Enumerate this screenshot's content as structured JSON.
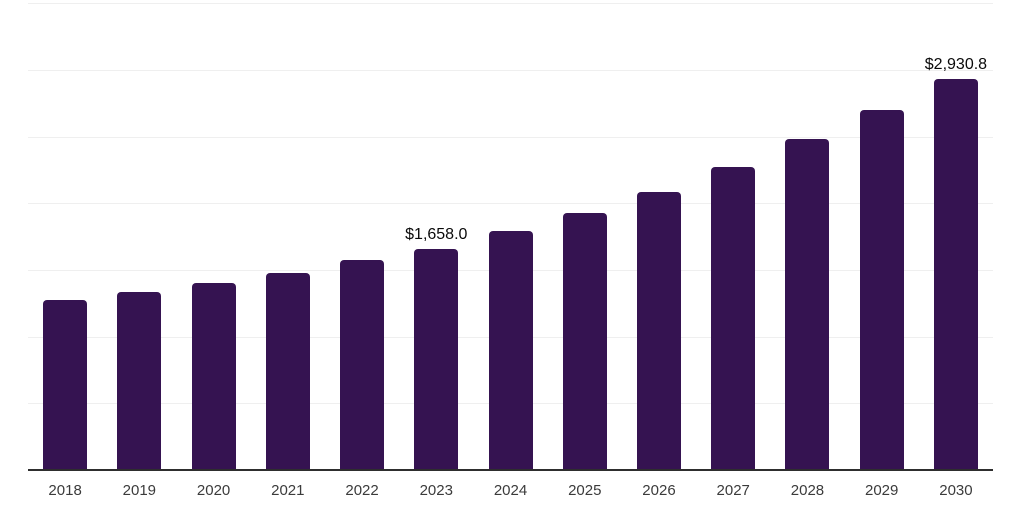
{
  "chart_data": {
    "type": "bar",
    "title": "",
    "xlabel": "",
    "ylabel": "",
    "categories": [
      "2018",
      "2019",
      "2020",
      "2021",
      "2022",
      "2023",
      "2024",
      "2025",
      "2026",
      "2027",
      "2028",
      "2029",
      "2030"
    ],
    "values": [
      1275,
      1333,
      1400,
      1480,
      1573,
      1658.0,
      1793,
      1930,
      2087,
      2275,
      2480,
      2700,
      2930.8
    ],
    "value_labels": {
      "2023": "$1,658.0",
      "2030": "$2,930.8"
    },
    "ylim": [
      0,
      3500
    ],
    "gridline_step": 500,
    "grid": true,
    "legend": false,
    "y_tick_labels_visible": false
  },
  "style": {
    "bar_color": "#351351",
    "gridline_color": "#efefef",
    "axis_line_color": "#2e2e2e",
    "tick_label_color": "#3b3b3b",
    "value_label_color": "#0a0a0a",
    "background_color": "#ffffff"
  }
}
